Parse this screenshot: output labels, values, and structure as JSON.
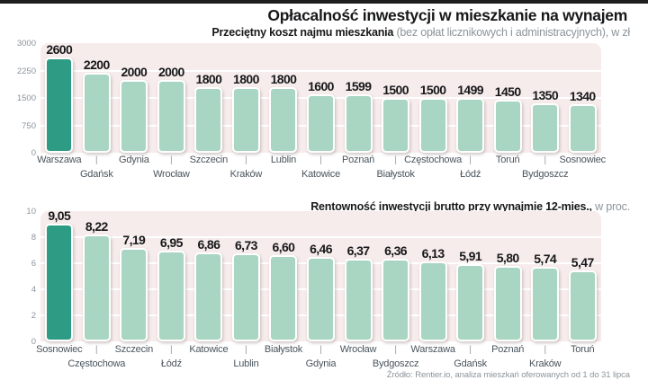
{
  "page_title": "Opłacalność inwestycji w mieszkanie na wynajem",
  "source_note": "Źródło: Rentier.io, analiza mieszkań oferowanych od 1 do 31 lipca",
  "colors": {
    "highlight_bar": "#2e9c84",
    "bar": "#a9d5c3",
    "plot_bg": "#f6eceb",
    "grid": "#ffffff"
  },
  "chart_data": [
    {
      "type": "bar",
      "title_bold": "Przeciętny koszt najmu mieszkania",
      "title_rest": " (bez opłat licznikowych i administracyjnych), w zł",
      "categories": [
        "Warszawa",
        "Gdańsk",
        "Gdynia",
        "Wrocław",
        "Szczecin",
        "Kraków",
        "Lublin",
        "Katowice",
        "Poznań",
        "Białystok",
        "Częstochowa",
        "Łódź",
        "Toruń",
        "Bydgoszcz",
        "Sosnowiec"
      ],
      "values": [
        2600,
        2200,
        2000,
        2000,
        1800,
        1800,
        1800,
        1600,
        1599,
        1500,
        1500,
        1499,
        1450,
        1350,
        1340
      ],
      "value_labels": [
        "2600",
        "2200",
        "2000",
        "2000",
        "1800",
        "1800",
        "1800",
        "1600",
        "1599",
        "1500",
        "1500",
        "1499",
        "1450",
        "1350",
        "1340"
      ],
      "ylim": [
        0,
        3000
      ],
      "yticks": [
        0,
        750,
        1500,
        2250,
        3000
      ],
      "ytick_labels": [
        "0",
        "750",
        "1500",
        "2250",
        "3000"
      ],
      "highlight_index": 0,
      "grid": true,
      "legend": "none"
    },
    {
      "type": "bar",
      "title_bold": "Rentowność inwestycji brutto  przy wynajmie  12-mies.,",
      "title_rest": " w proc.",
      "categories": [
        "Sosnowiec",
        "Częstochowa",
        "Szczecin",
        "Łódź",
        "Katowice",
        "Lublin",
        "Białystok",
        "Gdynia",
        "Wrocław",
        "Bydgoszcz",
        "Warszawa",
        "Gdańsk",
        "Poznań",
        "Kraków",
        "Toruń"
      ],
      "values": [
        9.05,
        8.22,
        7.19,
        6.95,
        6.86,
        6.73,
        6.6,
        6.46,
        6.37,
        6.36,
        6.13,
        5.91,
        5.8,
        5.74,
        5.47
      ],
      "value_labels": [
        "9,05",
        "8,22",
        "7,19",
        "6,95",
        "6,86",
        "6,73",
        "6,60",
        "6,46",
        "6,37",
        "6,36",
        "6,13",
        "5,91",
        "5,80",
        "5,74",
        "5,47"
      ],
      "ylim": [
        0,
        10
      ],
      "yticks": [
        0,
        2,
        4,
        6,
        8,
        10
      ],
      "ytick_labels": [
        "0",
        "2",
        "4",
        "6",
        "8",
        "10"
      ],
      "highlight_index": 0,
      "grid": true,
      "legend": "none"
    }
  ]
}
